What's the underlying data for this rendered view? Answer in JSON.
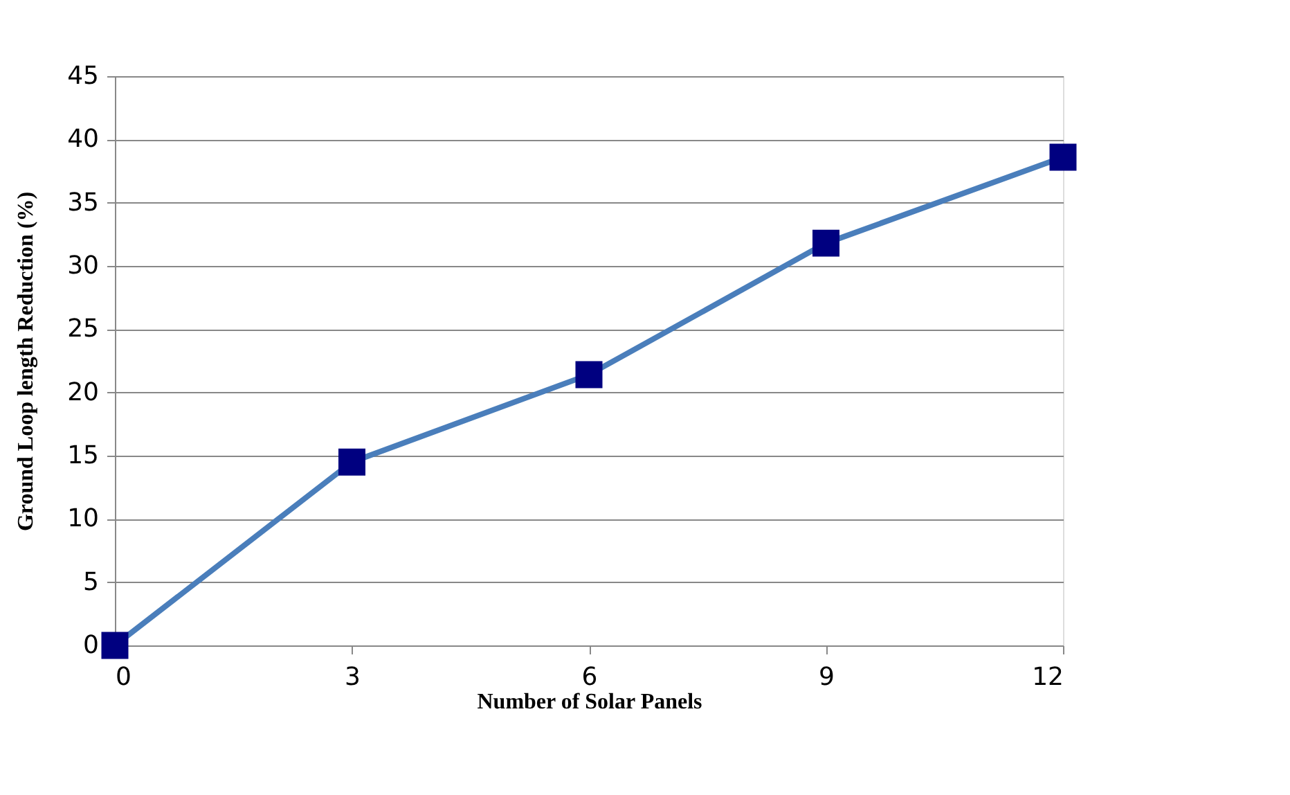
{
  "chart_data": {
    "type": "line",
    "xlabel": "Number of Solar Panels",
    "ylabel": "Ground Loop length Reduction (%)",
    "x": [
      0,
      3,
      6,
      9,
      12
    ],
    "series": [
      {
        "color": "#4a7ebb",
        "colors": [
          "#000080",
          "#000080",
          "#000080",
          "#000080",
          "#000080"
        ],
        "values": [
          0,
          14.5,
          21.4,
          31.8,
          38.6
        ]
      }
    ],
    "xlim": [
      0,
      12
    ],
    "xticks": [
      0,
      3,
      6,
      9,
      12
    ],
    "ylim": [
      0,
      45
    ],
    "yticks": [
      0,
      5,
      10,
      15,
      20,
      25,
      30,
      35,
      40,
      45
    ],
    "grid": "y",
    "marker": "square",
    "line_style": "solid"
  }
}
